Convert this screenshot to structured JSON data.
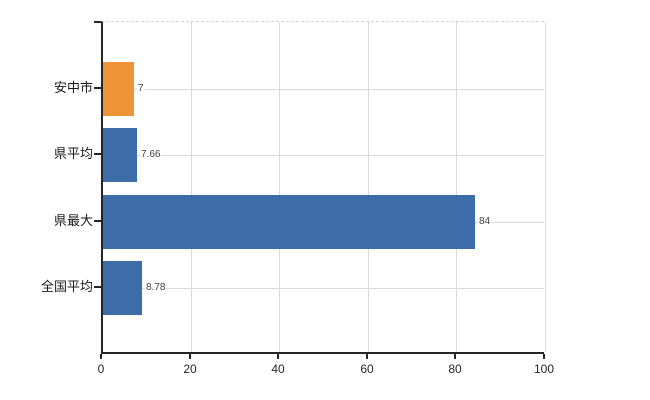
{
  "chart_data": {
    "type": "bar",
    "orientation": "horizontal",
    "title": "",
    "xlabel": "",
    "ylabel": "",
    "categories": [
      "安中市",
      "県平均",
      "県最大",
      "全国平均"
    ],
    "values": [
      7,
      7.66,
      84,
      8.78
    ],
    "value_labels": [
      "7",
      "7.66",
      "84",
      "8.78"
    ],
    "bar_colors": [
      "#ee9438",
      "#3d6da9",
      "#3d6da9",
      "#3d6da9"
    ],
    "x_ticks": [
      "0",
      "20",
      "40",
      "60",
      "80",
      "100"
    ],
    "x_tick_values": [
      0,
      20,
      40,
      60,
      80,
      100
    ],
    "xlim": [
      0,
      100
    ],
    "grid": "on",
    "legend_position": "none",
    "colors": {
      "background": "#ffffff",
      "grid": "#d9d9d9",
      "axis": "#262626",
      "value_label_text": "#3f3f3f",
      "category_label_text": "#1a1a1a"
    }
  }
}
